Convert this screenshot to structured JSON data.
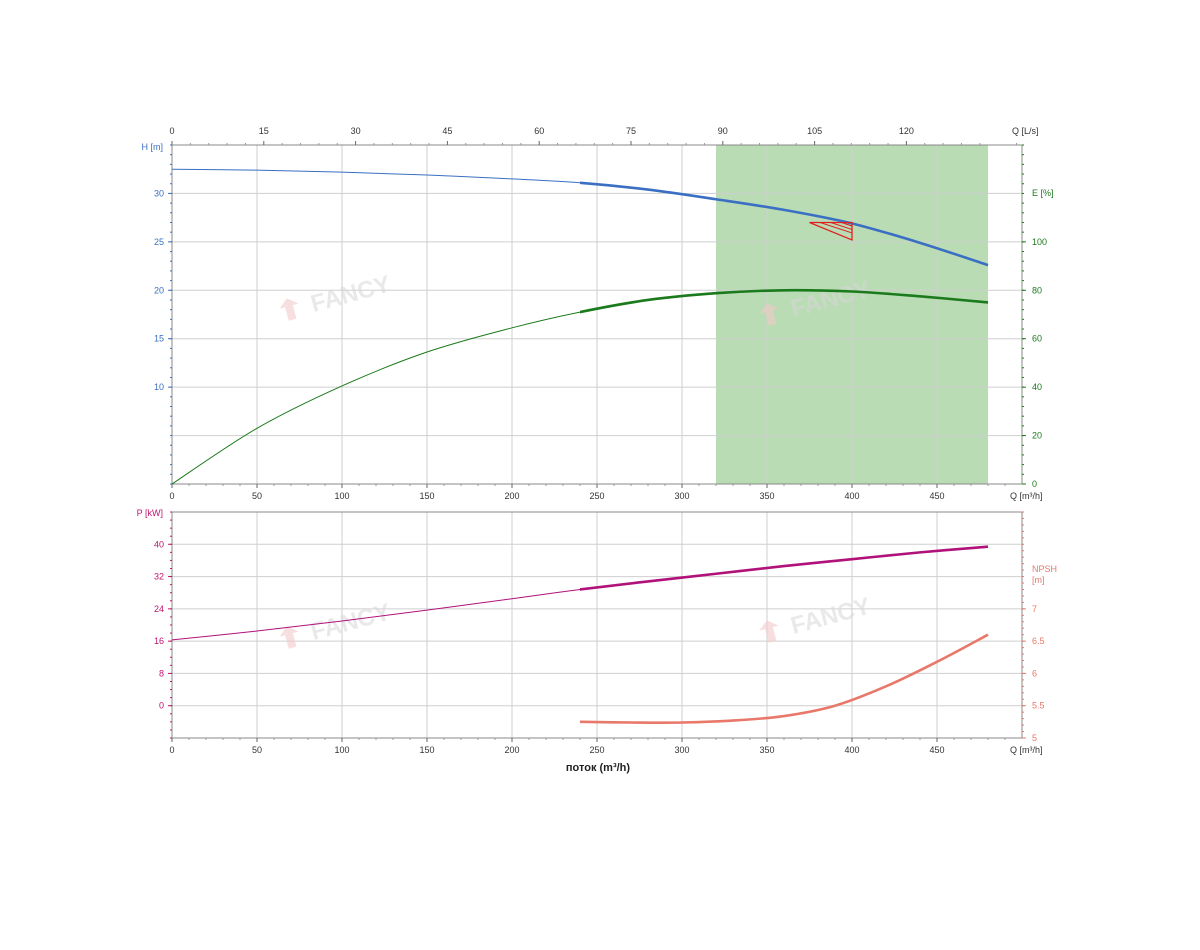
{
  "chart_data": [
    {
      "type": "line",
      "panel": "head-efficiency",
      "x": {
        "label": "Q [m³/h]",
        "range": [
          0,
          500
        ],
        "ticks": [
          0,
          50,
          100,
          150,
          200,
          250,
          300,
          350,
          400,
          450
        ]
      },
      "x_top": {
        "label": "Q [L/s]",
        "range": [
          0,
          138.89
        ],
        "ticks": [
          0,
          15,
          30,
          45,
          60,
          75,
          90,
          105,
          120
        ]
      },
      "y_left": {
        "label": "H [m]",
        "range": [
          0,
          35
        ],
        "ticks": [
          10,
          15,
          20,
          25,
          30
        ],
        "color": "#3a6fc4"
      },
      "y_right": {
        "label": "E [%]",
        "range": [
          0,
          140
        ],
        "ticks": [
          0,
          20,
          40,
          60,
          80,
          100
        ],
        "color": "#1b7a1b"
      },
      "shaded_region": {
        "x": [
          320,
          480
        ],
        "color": "#b9dcb4"
      },
      "operating_point": {
        "x": [
          375,
          400
        ],
        "y": [
          25.2,
          27
        ]
      },
      "series": [
        {
          "axis": "left",
          "color": "#3a6fc4",
          "x": [
            0,
            50,
            100,
            150,
            200,
            240,
            280,
            320,
            360,
            400,
            440,
            480
          ],
          "y": [
            32.5,
            32.4,
            32.2,
            31.9,
            31.5,
            31.1,
            30.4,
            29.4,
            28.3,
            26.9,
            24.9,
            22.6
          ]
        },
        {
          "axis": "right",
          "color": "#1b7a1b",
          "x": [
            0,
            50,
            100,
            150,
            200,
            240,
            280,
            320,
            360,
            400,
            440,
            480
          ],
          "y": [
            0,
            23,
            40.5,
            54.5,
            64.5,
            71,
            76,
            78.8,
            80,
            79.5,
            77.5,
            75
          ]
        }
      ],
      "grid": true
    },
    {
      "type": "line",
      "panel": "power-npsh",
      "x": {
        "label": "Q [m³/h]",
        "title": "поток (m³/h)",
        "range": [
          0,
          500
        ],
        "ticks": [
          0,
          50,
          100,
          150,
          200,
          250,
          300,
          350,
          400,
          450
        ]
      },
      "y_left": {
        "label": "P [kW]",
        "range": [
          -8,
          48
        ],
        "ticks": [
          0,
          8,
          16,
          24,
          32,
          40
        ],
        "color": "#c0146e"
      },
      "y_right": {
        "label_line1": "NPSH",
        "label_line2": "[m]",
        "range": [
          5,
          8.5
        ],
        "ticks": [
          5,
          5.5,
          6,
          6.5,
          7
        ],
        "tick_labels": [
          "5",
          "5.5",
          "6",
          "6.5",
          "7"
        ],
        "color": "#e8786a"
      },
      "series": [
        {
          "axis": "left",
          "color": "#b0127a",
          "x": [
            0,
            50,
            100,
            150,
            200,
            240,
            280,
            320,
            360,
            400,
            440,
            480
          ],
          "y": [
            16.3,
            18.5,
            21,
            23.7,
            26.5,
            28.8,
            30.8,
            32.7,
            34.6,
            36.3,
            38,
            39.4
          ]
        },
        {
          "axis": "right",
          "color": "#e8786a",
          "x": [
            240,
            270,
            300,
            330,
            360,
            390,
            420,
            450,
            480
          ],
          "y": [
            5.25,
            5.24,
            5.24,
            5.27,
            5.34,
            5.5,
            5.8,
            6.18,
            6.6
          ]
        }
      ],
      "grid": true
    }
  ],
  "watermarks": [
    "FANCY",
    "FANCY",
    "FANCY",
    "FANCY"
  ]
}
